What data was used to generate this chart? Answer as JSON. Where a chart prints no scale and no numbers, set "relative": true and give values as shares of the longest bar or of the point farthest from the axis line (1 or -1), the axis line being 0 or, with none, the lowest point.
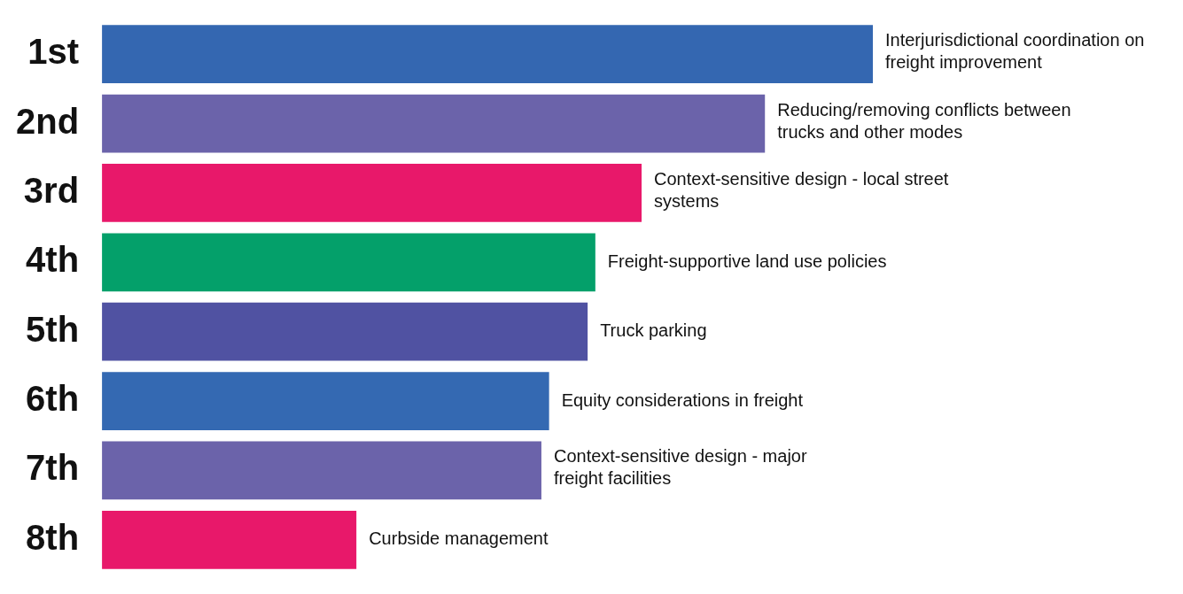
{
  "chart_data": {
    "type": "bar",
    "orientation": "horizontal",
    "relative": true,
    "grid": false,
    "legend": false,
    "categories": [
      "1st",
      "2nd",
      "3rd",
      "4th",
      "5th",
      "6th",
      "7th",
      "8th"
    ],
    "values": [
      1,
      0.86,
      0.7,
      0.64,
      0.63,
      0.58,
      0.57,
      0.33
    ],
    "colors": [
      "#3467b1",
      "#6b63aa",
      "#e8186a",
      "#04a06a",
      "#5052a2",
      "#3469b2",
      "#6b63aa",
      "#e8186a"
    ],
    "annotations": [
      {
        "text": "Interjurisdictional coordination on freight improvement",
        "x": 1,
        "y": "1st"
      },
      {
        "text": "Reducing/removing conflicts between trucks and other modes",
        "x": 0.86,
        "y": "2nd"
      },
      {
        "text": "Context-sensitive design - local street systems",
        "x": 0.7,
        "y": "3rd"
      },
      {
        "text": "Freight-supportive land use policies",
        "x": 0.64,
        "y": "4th"
      },
      {
        "text": "Truck parking",
        "x": 0.63,
        "y": "5th"
      },
      {
        "text": "Equity considerations in freight",
        "x": 0.58,
        "y": "6th"
      },
      {
        "text": "Context-sensitive design - major freight facilities",
        "x": 0.57,
        "y": "7th"
      },
      {
        "text": "Curbside management",
        "x": 0.33,
        "y": "8th"
      }
    ]
  }
}
